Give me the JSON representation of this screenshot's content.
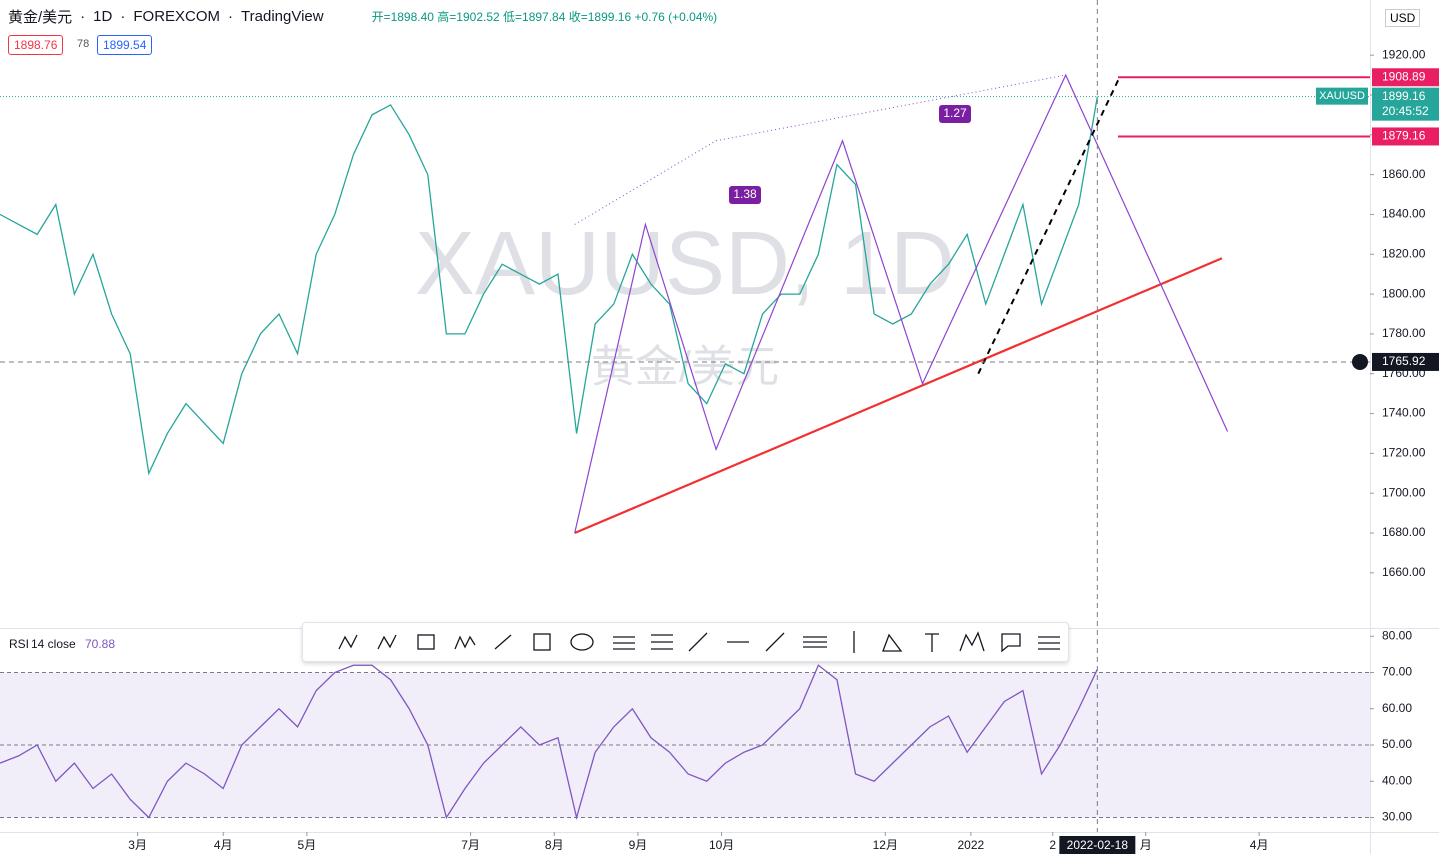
{
  "header": {
    "symbol": "黄金/美元",
    "interval": "1D",
    "exchange": "FOREXCOM",
    "brand": "TradingView",
    "ohlc": "开=1898.40 高=1902.52 低=1897.84 收=1899.16 +0.76 (+0.04%)",
    "bid": "1898.76",
    "spread": "78",
    "ask": "1899.54",
    "currency": "USD"
  },
  "chart_data": [
    {
      "type": "line",
      "watermark": "XAUUSD, 1D",
      "watermark_sub": "黄金/美元",
      "color": "#26a69a",
      "series": [
        {
          "name": "XAUUSD",
          "color": "#26a69a",
          "values": [
            1840,
            1835,
            1830,
            1845,
            1800,
            1820,
            1790,
            1770,
            1710,
            1730,
            1745,
            1735,
            1725,
            1760,
            1780,
            1790,
            1770,
            1820,
            1840,
            1870,
            1890,
            1895,
            1880,
            1860,
            1780,
            1780,
            1800,
            1815,
            1810,
            1805,
            1810,
            1730,
            1785,
            1795,
            1820,
            1805,
            1795,
            1755,
            1745,
            1765,
            1760,
            1790,
            1800,
            1800,
            1820,
            1865,
            1855,
            1790,
            1785,
            1790,
            1805,
            1815,
            1830,
            1795,
            1820,
            1845,
            1795,
            1820,
            1845,
            1899.16
          ]
        }
      ],
      "xlim": [
        0,
        73.66
      ],
      "xticks": [
        {
          "value": 7.4,
          "label": "3月"
        },
        {
          "value": 12,
          "label": "4月"
        },
        {
          "value": 16.5,
          "label": "5月"
        },
        {
          "value": 25.3,
          "label": "7月"
        },
        {
          "value": 29.8,
          "label": "8月"
        },
        {
          "value": 34.3,
          "label": "9月"
        },
        {
          "value": 38.8,
          "label": "10月"
        },
        {
          "value": 47.6,
          "label": "12月"
        },
        {
          "value": 52.2,
          "label": "2022"
        },
        {
          "value": 56.6,
          "label": "2"
        },
        {
          "value": 61.6,
          "label": "月"
        },
        {
          "value": 67.7,
          "label": "4月"
        }
      ],
      "cursor_x": {
        "value": 59,
        "label": "2022-02-18"
      },
      "ylim": [
        1632.3,
        1947.7
      ],
      "yticks": [
        {
          "value": 1920,
          "label": "1920.00"
        },
        {
          "value": 1900,
          "label": "1900.00"
        },
        {
          "value": 1880,
          "label": "1880.00"
        },
        {
          "value": 1860,
          "label": "1860.00"
        },
        {
          "value": 1840,
          "label": "1840.00"
        },
        {
          "value": 1820,
          "label": "1820.00"
        },
        {
          "value": 1800,
          "label": "1800.00"
        },
        {
          "value": 1780,
          "label": "1780.00"
        },
        {
          "value": 1760,
          "label": "1760.00"
        },
        {
          "value": 1740,
          "label": "1740.00"
        },
        {
          "value": 1720,
          "label": "1720.00"
        },
        {
          "value": 1700,
          "label": "1700.00"
        },
        {
          "value": 1680,
          "label": "1680.00"
        },
        {
          "value": 1660,
          "label": "1660.00"
        }
      ],
      "levels": [
        {
          "value": 1908.89,
          "label": "1908.89",
          "color": "#e91e63"
        },
        {
          "value": 1879.16,
          "label": "1879.16",
          "color": "#e91e63"
        }
      ],
      "last_price": {
        "name": "XAUUSD",
        "value": 1899.16,
        "label": "1899.16",
        "countdown": "20:45:52"
      },
      "crosshair": {
        "value": 1765.92,
        "label": "1765.92"
      },
      "trendline": {
        "color": "#f23030",
        "x": [
          30.9,
          65.7
        ],
        "values": [
          1680,
          1818
        ]
      },
      "pattern": {
        "color": "#8e44d0",
        "x": [
          30.9,
          34.7,
          38.5,
          45.3,
          49.6,
          57.3,
          66.0
        ],
        "values": [
          1680,
          1835,
          1722,
          1877,
          1755,
          1910,
          1731
        ],
        "ratios": [
          "1.38",
          "1.27"
        ]
      },
      "projection": {
        "color": "#000000",
        "x": [
          52.6,
          60.2
        ],
        "values": [
          1760,
          1909
        ]
      }
    },
    {
      "type": "line",
      "title": "RSI",
      "params": "14 close",
      "value_label": "70.88",
      "color": "#7e57c2",
      "series": [
        {
          "name": "RSI",
          "color": "#7e57c2",
          "values": [
            45,
            47,
            50,
            40,
            45,
            38,
            42,
            35,
            30,
            40,
            45,
            42,
            38,
            50,
            55,
            60,
            55,
            65,
            70,
            72,
            72,
            68,
            60,
            50,
            30,
            38,
            45,
            50,
            55,
            50,
            52,
            30,
            48,
            55,
            60,
            52,
            48,
            42,
            40,
            45,
            48,
            50,
            55,
            60,
            72,
            68,
            42,
            40,
            45,
            50,
            55,
            58,
            48,
            55,
            62,
            65,
            42,
            50,
            60,
            70.88
          ]
        }
      ],
      "ylim": [
        26,
        82
      ],
      "band": [
        30,
        70
      ],
      "midline": 50,
      "yticks": [
        {
          "value": 80,
          "label": "80.00"
        },
        {
          "value": 70,
          "label": "70.00"
        },
        {
          "value": 60,
          "label": "60.00"
        },
        {
          "value": 50,
          "label": "50.00"
        },
        {
          "value": 40,
          "label": "40.00"
        },
        {
          "value": 30,
          "label": "30.00"
        }
      ]
    }
  ]
}
